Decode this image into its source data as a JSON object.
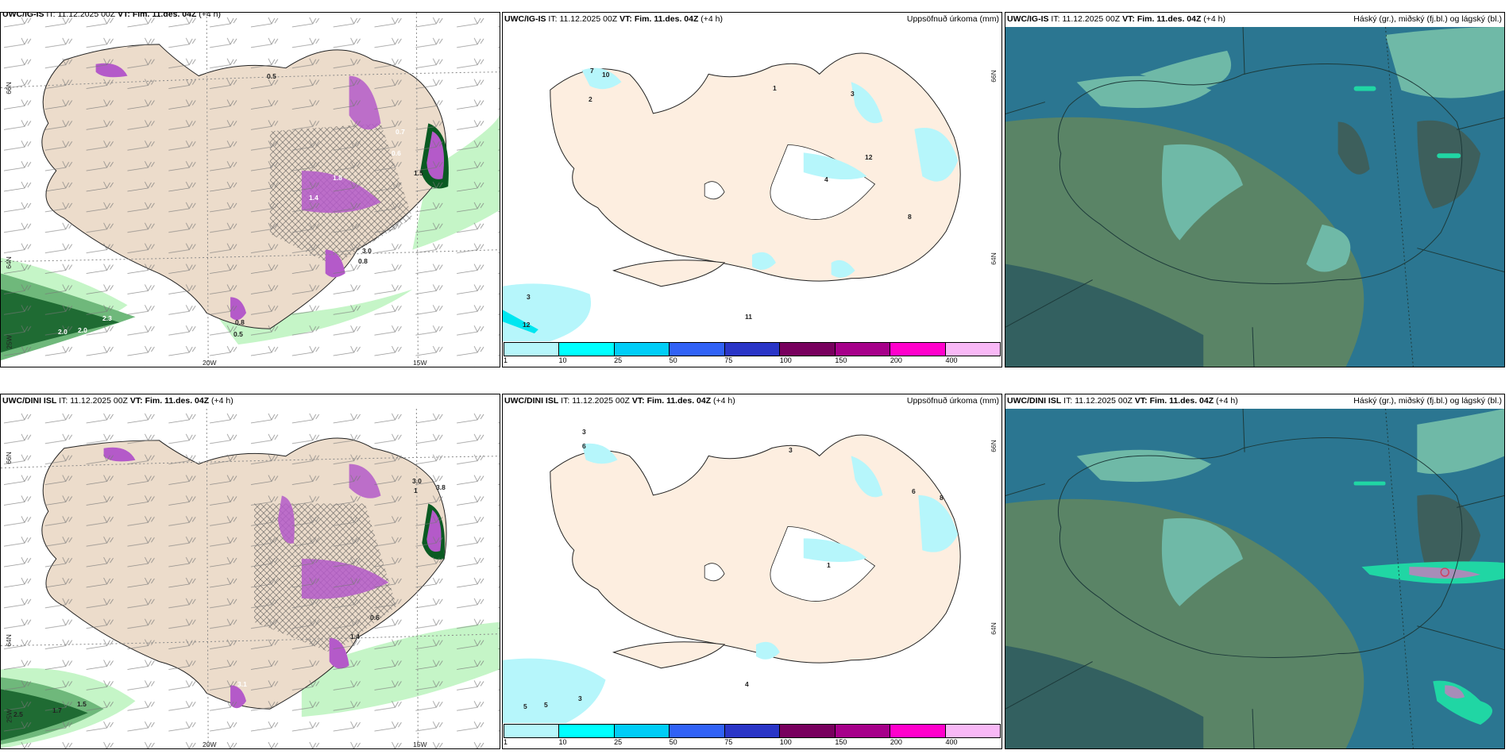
{
  "panels": [
    {
      "model": "UWC/IG-IS",
      "it_label": "IT:",
      "it_value": "11.12.2025 00Z",
      "vt_label": "VT:",
      "vt_value": "Fim. 11.des. 04Z",
      "lead": "(+4 h)",
      "right_title": "",
      "kind": "wind-precip",
      "lon_labels": [
        "20W",
        "15W"
      ],
      "lat_labels": [
        "66N",
        "64N",
        "25W"
      ],
      "contour_values": [
        "0.5",
        "2.3",
        "2.0",
        "2.0",
        "0.8",
        "0.5",
        "3.0",
        "0.8",
        "1.8",
        "1.4",
        "0.6",
        "0.7",
        "1.5"
      ]
    },
    {
      "model": "UWC/IG-IS",
      "it_label": "IT:",
      "it_value": "11.12.2025 00Z",
      "vt_label": "VT:",
      "vt_value": "Fim. 11.des. 04Z",
      "lead": "(+4 h)",
      "right_title": "Uppsöfnuð úrkoma (mm)",
      "kind": "accum-precip",
      "lat_labels": [
        "66N",
        "64N"
      ],
      "precip_values": [
        "2",
        "7",
        "10",
        "2",
        "1",
        "2",
        "2",
        "3",
        "2",
        "2",
        "1",
        "1",
        "2",
        "1",
        "3",
        "3",
        "2",
        "3",
        "3",
        "13",
        "12",
        "1",
        "4",
        "3",
        "3",
        "3",
        "2",
        "1",
        "2",
        "3",
        "4",
        "7",
        "5",
        "3",
        "8",
        "3",
        "3",
        "3",
        "12",
        "11"
      ]
    },
    {
      "model": "UWC/IG-IS",
      "it_label": "IT:",
      "it_value": "11.12.2025 00Z",
      "vt_label": "VT:",
      "vt_value": "Fim. 11.des. 04Z",
      "lead": "(+4 h)",
      "right_title": "Háský (gr.), miðský (fj.bl.) og lágský (bl.)",
      "kind": "cloud"
    },
    {
      "model": "UWC/DINI ISL",
      "it_label": "IT:",
      "it_value": "11.12.2025 00Z",
      "vt_label": "VT:",
      "vt_value": "Fim. 11.des. 04Z",
      "lead": "(+4 h)",
      "right_title": "",
      "kind": "wind-precip",
      "lon_labels": [
        "20W",
        "15W"
      ],
      "lat_labels": [
        "66N",
        "64N",
        "25W"
      ],
      "contour_values": [
        "1.5",
        "1.7",
        "2.5",
        "3.0",
        "1",
        "3.8",
        "0.6",
        "1.4",
        "3.1"
      ]
    },
    {
      "model": "UWC/DINI ISL",
      "it_label": "IT:",
      "it_value": "11.12.2025 00Z",
      "vt_label": "VT:",
      "vt_value": "Fim. 11.des. 04Z",
      "lead": "(+4 h)",
      "right_title": "Uppsöfnuð úrkoma (mm)",
      "kind": "accum-precip",
      "lat_labels": [
        "66N",
        "64N"
      ],
      "precip_values": [
        "3",
        "6",
        "1",
        "1",
        "3",
        "2",
        "2",
        "2",
        "1",
        "2",
        "1",
        "3",
        "2",
        "2",
        "2",
        "6",
        "2",
        "8",
        "2",
        "1",
        "3",
        "1",
        "1",
        "3",
        "2",
        "3",
        "4",
        "3",
        "6",
        "4",
        "3",
        "5",
        "5",
        "3",
        "4"
      ]
    },
    {
      "model": "UWC/DINI ISL",
      "it_label": "IT:",
      "it_value": "11.12.2025 00Z",
      "vt_label": "VT:",
      "vt_value": "Fim. 11.des. 04Z",
      "lead": "(+4 h)",
      "right_title": "Háský (gr.), miðský (fj.bl.) og lágský (bl.)",
      "kind": "cloud"
    }
  ],
  "legend": {
    "labels": [
      "1",
      "10",
      "25",
      "50",
      "75",
      "100",
      "150",
      "200",
      "400"
    ],
    "colors": [
      "#b6f6fb",
      "#00ffff",
      "#00cdf7",
      "#3162f6",
      "#2a35c7",
      "#78005e",
      "#a6008a",
      "#ff00cc",
      "#f8b8f6"
    ]
  },
  "colors": {
    "land": "#ecdccb",
    "land_accum": "#fdeee0",
    "sea": "#ffffff",
    "cloud_sea": "#2b7691",
    "precip_light": "#c5f5c7",
    "precip_dark": "#0a5a22",
    "precip_purple": "#b45ac9"
  }
}
